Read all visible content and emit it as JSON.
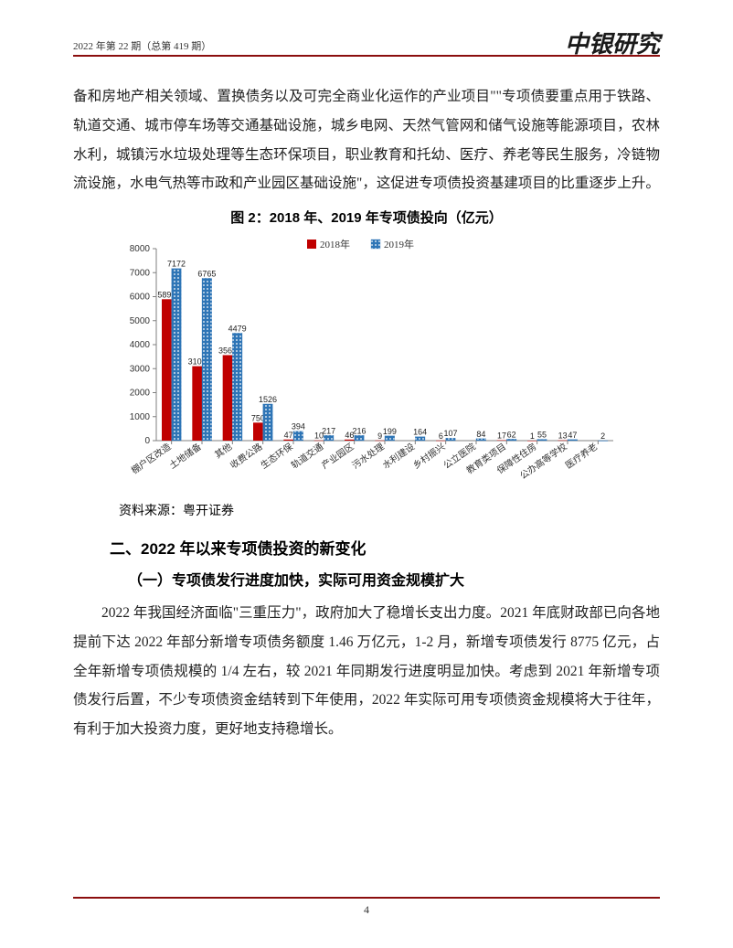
{
  "header": {
    "left": "2022 年第 22 期（总第 419 期）",
    "right": "中银研究"
  },
  "para1": "备和房地产相关领域、置换债务以及可完全商业化运作的产业项目\"\"专项债要重点用于铁路、轨道交通、城市停车场等交通基础设施，城乡电网、天然气管网和储气设施等能源项目，农林水利，城镇污水垃圾处理等生态环保项目，职业教育和托幼、医疗、养老等民生服务，冷链物流设施，水电气热等市政和产业园区基础设施\"，这促进专项债投资基建项目的比重逐步上升。",
  "fig_title": "图 2：2018 年、2019 年专项债投向（亿元）",
  "chart": {
    "type": "bar",
    "legend": [
      "2018年",
      "2019年"
    ],
    "categories": [
      "棚户区改造",
      "土地储备",
      "其他",
      "收费公路",
      "生态环保",
      "轨道交通",
      "产业园区",
      "污水处理",
      "水利建设",
      "乡村振兴",
      "公立医院",
      "教育类项目",
      "保障性住房",
      "公办高等学校",
      "医疗养老"
    ],
    "series2018": [
      5893,
      3102,
      3563,
      750,
      47,
      10,
      46,
      9,
      null,
      6,
      null,
      17,
      1,
      13,
      null
    ],
    "series2019": [
      7172,
      6765,
      4479,
      1526,
      394,
      217,
      216,
      199,
      164,
      107,
      84,
      62,
      55,
      47,
      2
    ],
    "labels2018": [
      "5893",
      "3102",
      "3563",
      "750",
      "47",
      "10",
      "46",
      "9",
      "",
      "6",
      "",
      "17",
      "1",
      "13",
      ""
    ],
    "labels2019": [
      "7172",
      "6765",
      "4479",
      "1526",
      "394",
      "217",
      "216",
      "199",
      "164",
      "107",
      "84",
      "62",
      "55",
      "47",
      "2"
    ],
    "ylim": [
      0,
      8000
    ],
    "ytick_step": 1000,
    "color2018": "#c00000",
    "color2019": "#2e75b6",
    "pattern2019": "dots",
    "axis_color": "#7f7f7f",
    "label_fontsize": 9,
    "axis_fontsize": 10,
    "background": "#ffffff"
  },
  "source": "资料来源：粤开证券",
  "h2": "二、2022 年以来专项债投资的新变化",
  "h3": "（一）专项债发行进度加快，实际可用资金规模扩大",
  "para2": "2022 年我国经济面临\"三重压力\"，政府加大了稳增长支出力度。2021 年底财政部已向各地提前下达 2022 年部分新增专项债务额度 1.46 万亿元，1-2 月，新增专项债发行 8775 亿元，占全年新增专项债规模的 1/4 左右，较 2021 年同期发行进度明显加快。考虑到 2021 年新增专项债发行后置，不少专项债资金结转到下年使用，2022 年实际可用专项债资金规模将大于往年，有利于加大投资力度，更好地支持稳增长。",
  "page_number": "4"
}
